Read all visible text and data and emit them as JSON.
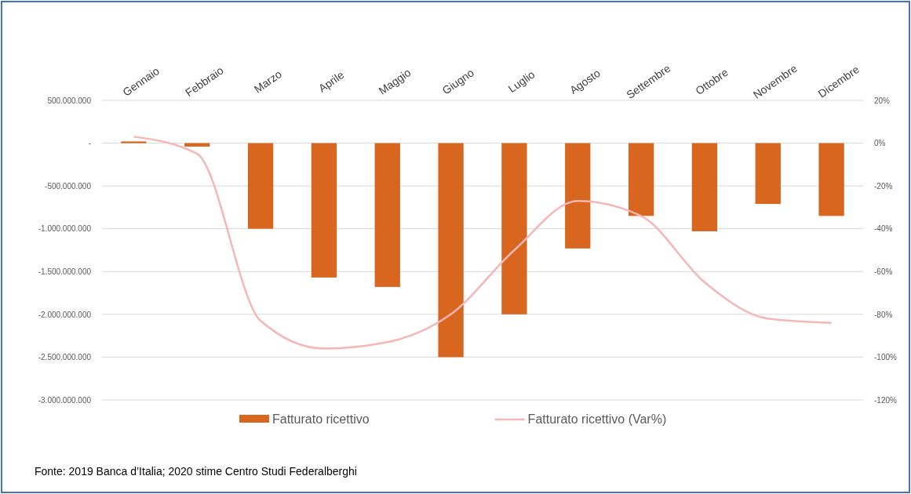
{
  "chart_data": {
    "type": "bar",
    "categories": [
      "Gennaio",
      "Febbraio",
      "Marzo",
      "Aprile",
      "Maggio",
      "Giugno",
      "Luglio",
      "Agosto",
      "Settembre",
      "Ottobre",
      "Novembre",
      "Dicembre"
    ],
    "series": [
      {
        "name": "Fatturato ricettivo",
        "color": "#d9661f",
        "values": [
          20000000,
          -40000000,
          -1000000000,
          -1570000000,
          -1680000000,
          -2500000000,
          -2000000000,
          -1230000000,
          -850000000,
          -1030000000,
          -710000000,
          -850000000
        ]
      },
      {
        "name": "Fatturato ricettivo (Var%)",
        "type": "line",
        "axis": "y2",
        "color": "#f4b6b6",
        "values": [
          3,
          -5,
          -83,
          -96,
          -93,
          -80,
          -50,
          -27,
          -34,
          -65,
          -82,
          -84
        ]
      }
    ],
    "ylim": [
      -3000000000,
      500000000
    ],
    "yticks": [
      {
        "value": 500000000,
        "label": "500.000.000"
      },
      {
        "value": 0,
        "label": "-"
      },
      {
        "value": -500000000,
        "label": "-500.000.000"
      },
      {
        "value": -1000000000,
        "label": "-1.000.000.000"
      },
      {
        "value": -1500000000,
        "label": "-1.500.000.000"
      },
      {
        "value": -2000000000,
        "label": "-2.000.000.000"
      },
      {
        "value": -2500000000,
        "label": "-2.500.000.000"
      },
      {
        "value": -3000000000,
        "label": "-3.000.000.000"
      }
    ],
    "y2lim": [
      -120,
      20
    ],
    "y2ticks": [
      {
        "value": 20,
        "label": "20%"
      },
      {
        "value": 0,
        "label": "0%"
      },
      {
        "value": -20,
        "label": "-20%"
      },
      {
        "value": -40,
        "label": "-40%"
      },
      {
        "value": -60,
        "label": "-60%"
      },
      {
        "value": -80,
        "label": "-80%"
      },
      {
        "value": -100,
        "label": "-100%"
      },
      {
        "value": -120,
        "label": "-120%"
      }
    ],
    "grid": "y",
    "legend": "bottom",
    "marker": "none",
    "line_style": "solid",
    "annotations": [
      "Fonte: 2019 Banca d’Italia; 2020 stime Centro Studi Federalberghi"
    ]
  }
}
